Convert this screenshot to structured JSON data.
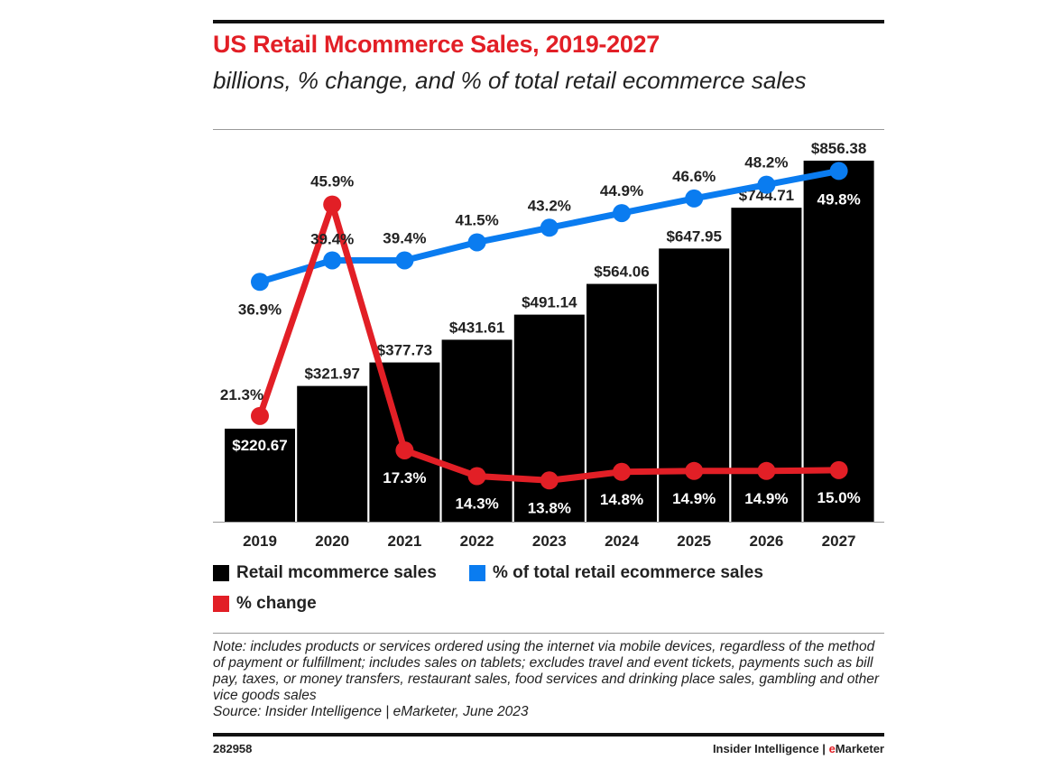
{
  "chart_data": {
    "type": "bar",
    "title": "US Retail Mcommerce Sales, 2019-2027",
    "subtitle": "billions, % change, and % of total retail ecommerce sales",
    "categories": [
      "2019",
      "2020",
      "2021",
      "2022",
      "2023",
      "2024",
      "2025",
      "2026",
      "2027"
    ],
    "series": [
      {
        "name": "Retail mcommerce sales",
        "kind": "bar",
        "color": "#000000",
        "values": [
          220.67,
          321.97,
          377.73,
          431.61,
          491.14,
          564.06,
          647.95,
          744.71,
          856.38
        ],
        "labels": [
          "$220.67",
          "$321.97",
          "$377.73",
          "$431.61",
          "$491.14",
          "$564.06",
          "$647.95",
          "$744.71",
          "$856.38"
        ]
      },
      {
        "name": "% of total retail ecommerce sales",
        "kind": "line",
        "color": "#0a7cf0",
        "values": [
          36.9,
          39.4,
          39.4,
          41.5,
          43.2,
          44.9,
          46.6,
          48.2,
          49.8
        ],
        "labels": [
          "36.9%",
          "39.4%",
          "39.4%",
          "41.5%",
          "43.2%",
          "44.9%",
          "46.6%",
          "48.2%",
          "49.8%"
        ]
      },
      {
        "name": "% change",
        "kind": "line",
        "color": "#e21f26",
        "values": [
          21.3,
          45.9,
          17.3,
          14.3,
          13.8,
          14.8,
          14.9,
          14.9,
          15.0
        ],
        "labels": [
          "21.3%",
          "45.9%",
          "17.3%",
          "14.3%",
          "13.8%",
          "14.8%",
          "14.9%",
          "14.9%",
          "15.0%"
        ]
      }
    ],
    "ylim": [
      0,
      856.38
    ],
    "y2lim": [
      9,
      51
    ],
    "grid": false,
    "legend_placement": "bottom"
  },
  "note": "Note: includes products or services ordered using the internet via mobile devices, regardless of the method of payment or fulfillment; includes sales on tablets; excludes travel and event tickets, payments such as bill pay, taxes, or money transfers, restaurant sales, food services and drinking place sales, gambling and other vice goods sales",
  "source": "Source: Insider Intelligence | eMarketer, June 2023",
  "footer": {
    "id": "282958",
    "brand_left": "Insider Intelligence | ",
    "brand_e": "e",
    "brand_right": "Marketer"
  }
}
